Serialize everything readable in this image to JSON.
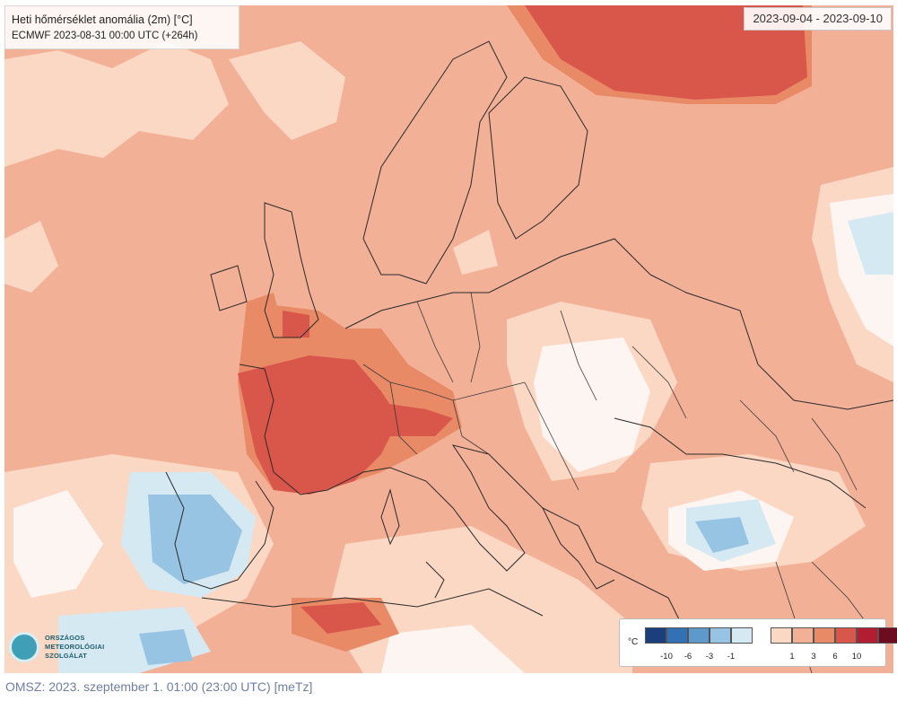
{
  "map": {
    "title": "Heti hőmérséklet anomália (2m) [°C]",
    "subtitle": "ECMWF 2023-08-31 00:00 UTC (+264h)",
    "date_range": "2023-09-04 - 2023-09-10"
  },
  "legend": {
    "unit": "°C",
    "items": [
      {
        "label": "-10",
        "color": "#1b3f7c"
      },
      {
        "label": "-6",
        "color": "#3471b2"
      },
      {
        "label": "-3",
        "color": "#5e99cc"
      },
      {
        "label": "-1",
        "color": "#97c4e2"
      },
      {
        "label": "",
        "color": "#d5e9f3"
      },
      {
        "label": "",
        "color": "#fbd8c3"
      },
      {
        "label": "1",
        "color": "#f2b196"
      },
      {
        "label": "3",
        "color": "#e98a67"
      },
      {
        "label": "6",
        "color": "#d8564a"
      },
      {
        "label": "10",
        "color": "#b31d32"
      },
      {
        "label": "",
        "color": "#6e0c1f"
      }
    ]
  },
  "logo": {
    "line1": "ORSZÁGOS",
    "line2": "METEOROLÓGIAI",
    "line3": "SZOLGÁLAT"
  },
  "footer": {
    "text": "OMSZ: 2023. szeptember 1. 01:00 (23:00  UTC)  [meTz]"
  }
}
